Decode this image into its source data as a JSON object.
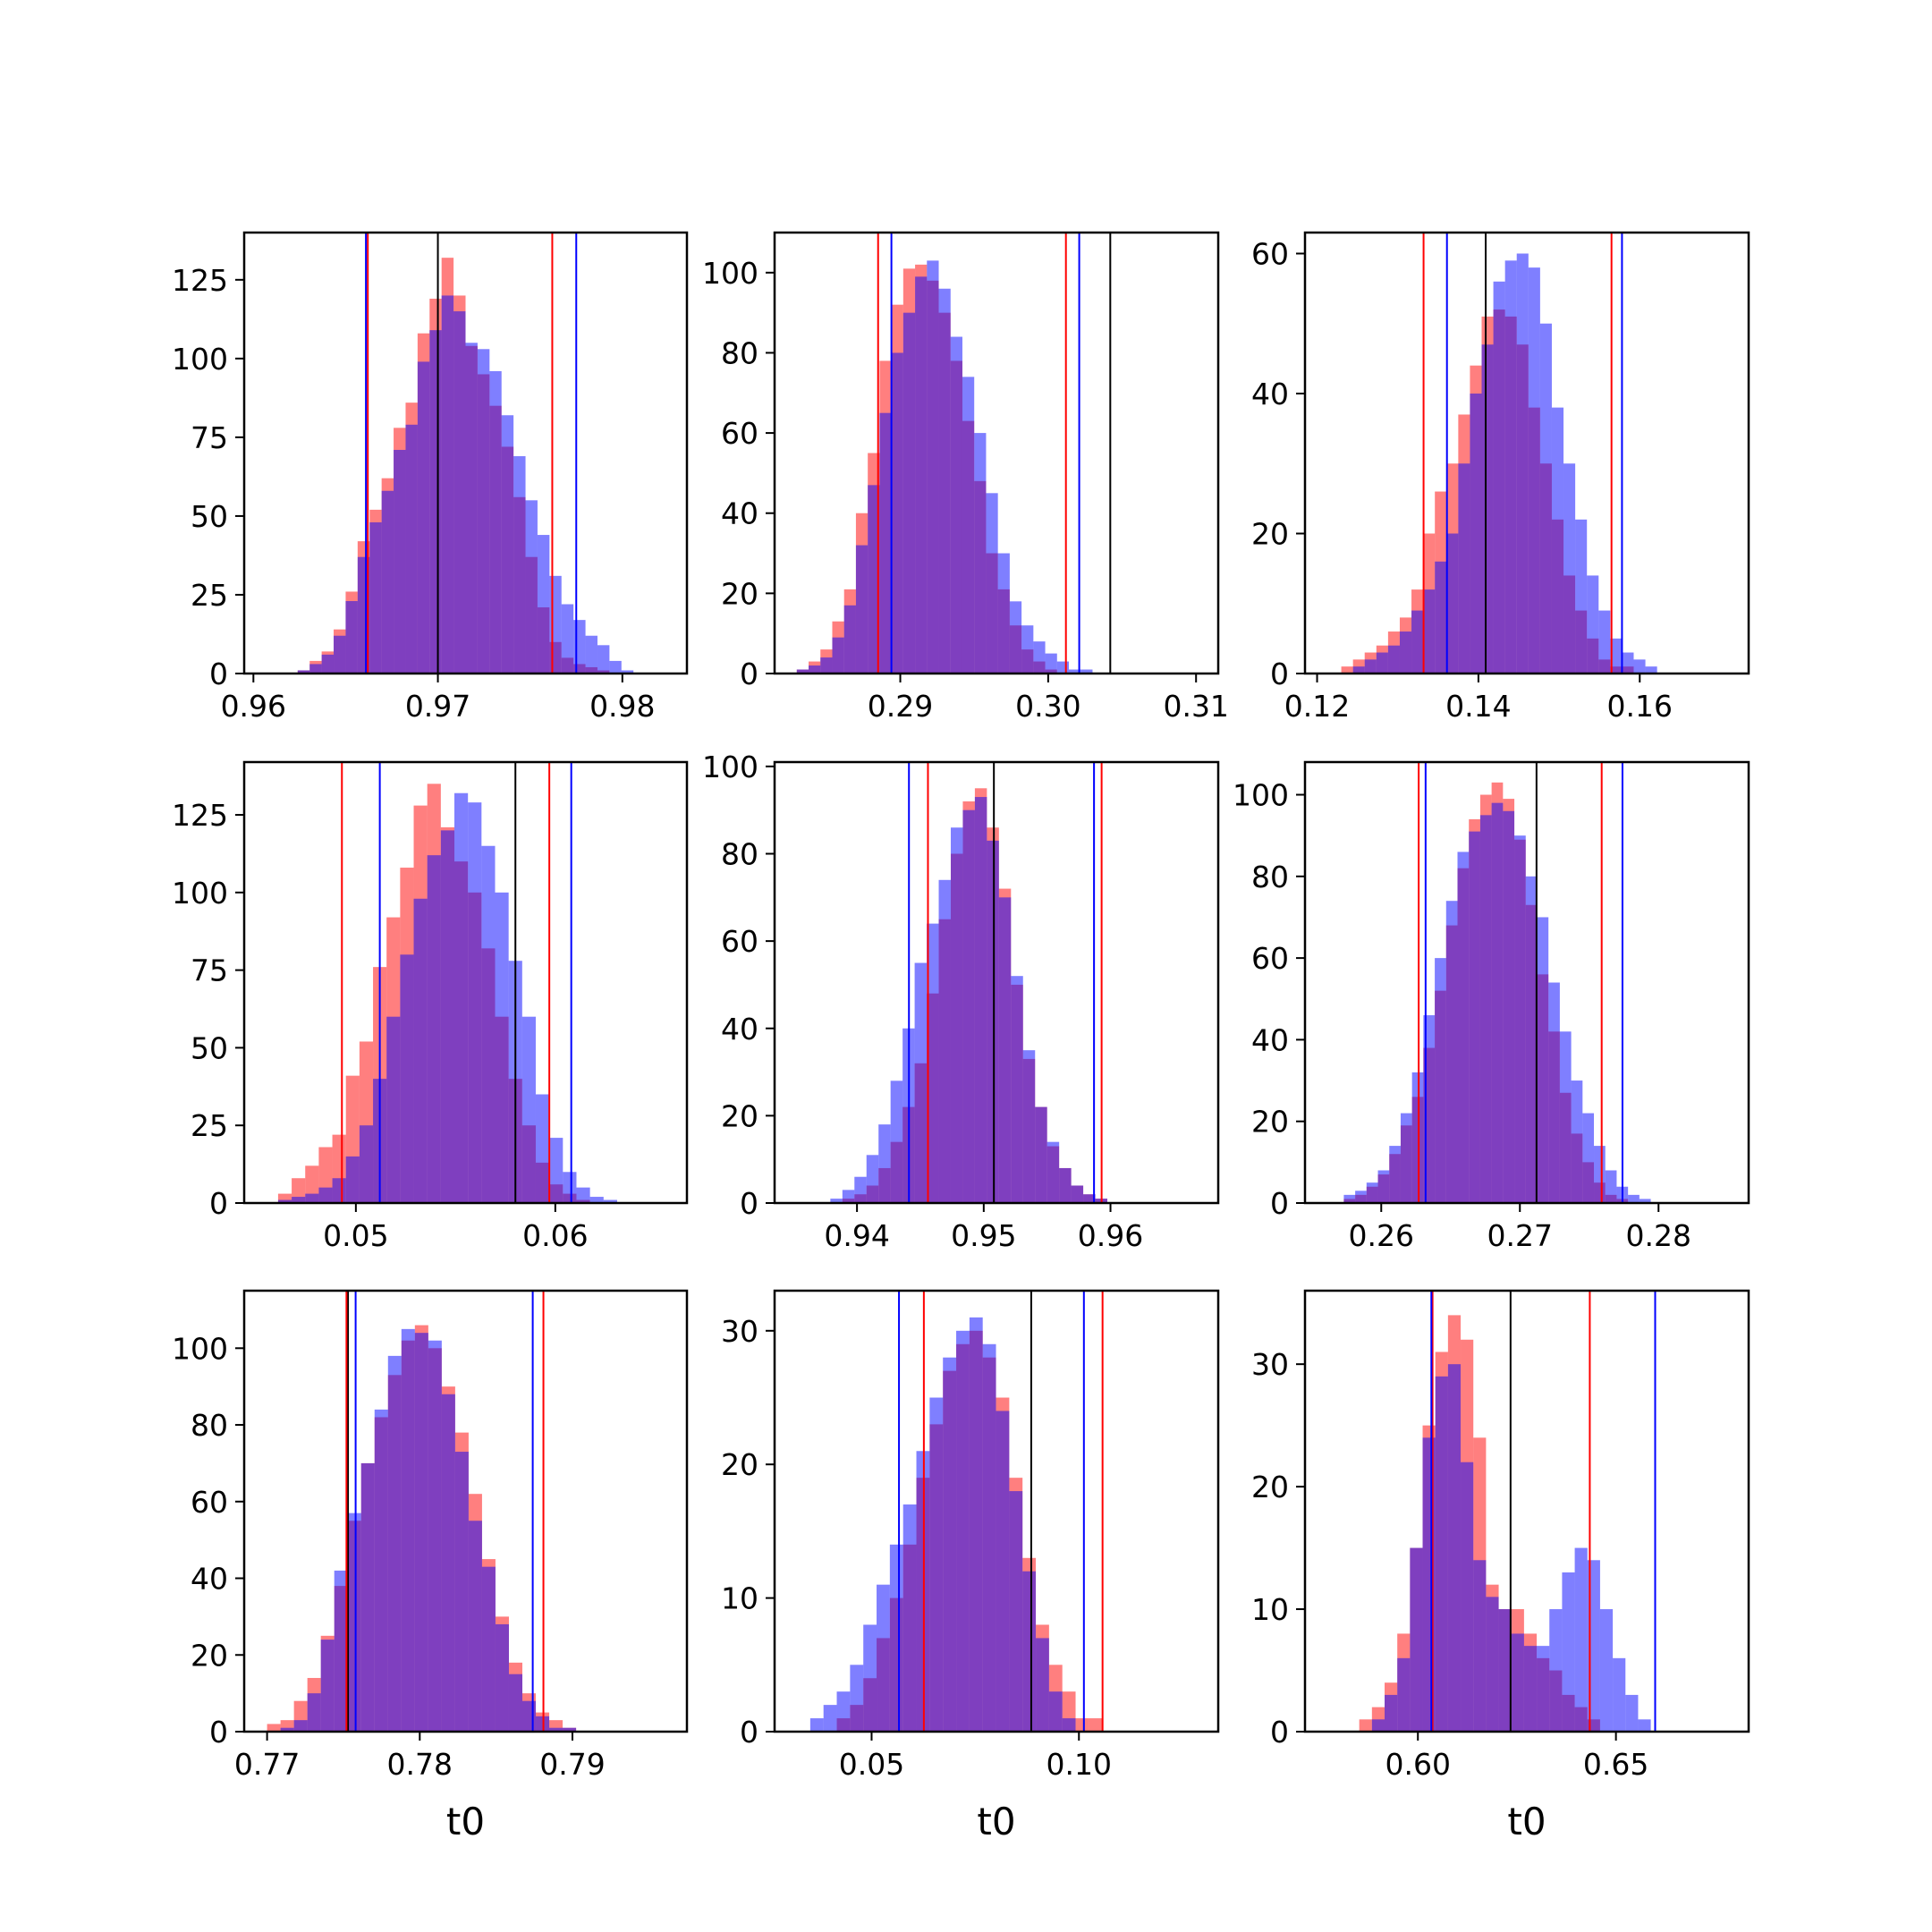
{
  "colors": {
    "red": "#ff0000",
    "blue": "#0000ff",
    "vline_black": "#000000"
  },
  "chart_data": [
    {
      "type": "bar",
      "panel": 1,
      "xlim": [
        0.9595,
        0.9835
      ],
      "ylim": [
        0,
        140
      ],
      "x_ticks": [
        0.96,
        0.97,
        0.98
      ],
      "x_tick_labels": [
        "0.96",
        "0.97",
        "0.98"
      ],
      "y_ticks": [
        0,
        25,
        50,
        75,
        100,
        125
      ],
      "y_tick_labels": [
        "0",
        "25",
        "50",
        "75",
        "100",
        "125"
      ],
      "xlabel": "",
      "vlines": {
        "red": [
          0.9662,
          0.9762
        ],
        "blue": [
          0.9661,
          0.9775
        ],
        "black": [
          0.97
        ]
      },
      "series": [
        {
          "color": "red",
          "bin_start": 0.9624,
          "bin_width": 0.00065,
          "values": [
            1,
            4,
            7,
            14,
            26,
            42,
            52,
            62,
            78,
            86,
            108,
            119,
            132,
            120,
            104,
            95,
            85,
            72,
            56,
            37,
            21,
            10,
            5,
            3,
            2,
            1,
            0,
            0
          ]
        },
        {
          "color": "blue",
          "bin_start": 0.9624,
          "bin_width": 0.00065,
          "values": [
            1,
            3,
            6,
            12,
            23,
            37,
            48,
            58,
            71,
            79,
            99,
            109,
            120,
            115,
            105,
            103,
            96,
            82,
            69,
            55,
            44,
            31,
            22,
            17,
            12,
            9,
            4,
            1
          ]
        }
      ]
    },
    {
      "type": "bar",
      "panel": 2,
      "xlim": [
        0.2815,
        0.3115
      ],
      "ylim": [
        0,
        110
      ],
      "x_ticks": [
        0.29,
        0.3,
        0.31
      ],
      "x_tick_labels": [
        "0.29",
        "0.30",
        "0.31"
      ],
      "y_ticks": [
        0,
        20,
        40,
        60,
        80,
        100
      ],
      "y_tick_labels": [
        "0",
        "20",
        "40",
        "60",
        "80",
        "100"
      ],
      "xlabel": "",
      "vlines": {
        "red": [
          0.2885,
          0.3012
        ],
        "blue": [
          0.2894,
          0.3021
        ],
        "black": [
          0.3042
        ]
      },
      "series": [
        {
          "color": "red",
          "bin_start": 0.283,
          "bin_width": 0.0008,
          "values": [
            1,
            3,
            6,
            13,
            21,
            40,
            55,
            78,
            92,
            101,
            102,
            98,
            90,
            78,
            63,
            48,
            30,
            21,
            12,
            6,
            3,
            1,
            0,
            0,
            0
          ]
        },
        {
          "color": "blue",
          "bin_start": 0.283,
          "bin_width": 0.0008,
          "values": [
            1,
            2,
            4,
            9,
            17,
            32,
            47,
            65,
            80,
            90,
            99,
            103,
            96,
            84,
            74,
            60,
            45,
            30,
            18,
            12,
            8,
            5,
            3,
            1,
            1
          ]
        }
      ]
    },
    {
      "type": "bar",
      "panel": 3,
      "xlim": [
        0.1185,
        0.1735
      ],
      "ylim": [
        0,
        63
      ],
      "x_ticks": [
        0.12,
        0.14,
        0.16
      ],
      "x_tick_labels": [
        "0.12",
        "0.14",
        "0.16"
      ],
      "y_ticks": [
        0,
        20,
        40,
        60
      ],
      "y_tick_labels": [
        "0",
        "20",
        "40",
        "60"
      ],
      "xlabel": "",
      "vlines": {
        "red": [
          0.1332,
          0.1565
        ],
        "blue": [
          0.1361,
          0.1578
        ],
        "black": [
          0.1409
        ]
      },
      "series": [
        {
          "color": "red",
          "bin_start": 0.123,
          "bin_width": 0.00145,
          "values": [
            1,
            2,
            3,
            4,
            6,
            8,
            12,
            20,
            26,
            30,
            37,
            44,
            51,
            52,
            51,
            47,
            38,
            30,
            22,
            14,
            9,
            5,
            2,
            1,
            1,
            0,
            0,
            0
          ]
        },
        {
          "color": "blue",
          "bin_start": 0.123,
          "bin_width": 0.00145,
          "values": [
            0,
            1,
            2,
            3,
            4,
            6,
            9,
            12,
            16,
            20,
            30,
            40,
            47,
            56,
            59,
            60,
            58,
            50,
            38,
            30,
            22,
            14,
            9,
            5,
            3,
            2,
            1,
            0
          ]
        }
      ]
    },
    {
      "type": "bar",
      "panel": 4,
      "xlim": [
        0.0444,
        0.0666
      ],
      "ylim": [
        0,
        142
      ],
      "x_ticks": [
        0.05,
        0.06
      ],
      "x_tick_labels": [
        "0.05",
        "0.06"
      ],
      "y_ticks": [
        0,
        25,
        50,
        75,
        100,
        125
      ],
      "y_tick_labels": [
        "0",
        "25",
        "50",
        "75",
        "100",
        "125"
      ],
      "xlabel": "",
      "vlines": {
        "red": [
          0.0493,
          0.0597
        ],
        "blue": [
          0.0512,
          0.0608
        ],
        "black": [
          0.058
        ]
      },
      "series": [
        {
          "color": "red",
          "bin_start": 0.0461,
          "bin_width": 0.00068,
          "values": [
            3,
            8,
            12,
            18,
            22,
            41,
            52,
            76,
            92,
            108,
            128,
            135,
            121,
            110,
            100,
            82,
            60,
            40,
            25,
            13,
            6,
            3,
            1,
            0,
            0
          ]
        },
        {
          "color": "blue",
          "bin_start": 0.0461,
          "bin_width": 0.00068,
          "values": [
            1,
            2,
            3,
            5,
            8,
            15,
            25,
            40,
            60,
            80,
            98,
            112,
            120,
            132,
            129,
            115,
            100,
            78,
            60,
            35,
            21,
            10,
            5,
            2,
            1
          ]
        }
      ]
    },
    {
      "type": "bar",
      "panel": 5,
      "xlim": [
        0.9335,
        0.9685
      ],
      "ylim": [
        0,
        101
      ],
      "x_ticks": [
        0.94,
        0.95,
        0.96
      ],
      "x_tick_labels": [
        "0.94",
        "0.95",
        "0.96"
      ],
      "y_ticks": [
        0,
        20,
        40,
        60,
        80,
        100
      ],
      "y_tick_labels": [
        "0",
        "20",
        "40",
        "60",
        "80",
        "100"
      ],
      "xlabel": "",
      "vlines": {
        "red": [
          0.9456,
          0.9593
        ],
        "blue": [
          0.9441,
          0.9587
        ],
        "black": [
          0.9508
        ]
      },
      "series": [
        {
          "color": "red",
          "bin_start": 0.936,
          "bin_width": 0.00095,
          "values": [
            0,
            0,
            0,
            1,
            2,
            4,
            8,
            14,
            22,
            32,
            48,
            65,
            80,
            92,
            95,
            86,
            72,
            50,
            33,
            22,
            13,
            8,
            4,
            2,
            1,
            0,
            0,
            0,
            0,
            0
          ]
        },
        {
          "color": "blue",
          "bin_start": 0.936,
          "bin_width": 0.00095,
          "values": [
            0,
            0,
            1,
            3,
            6,
            11,
            18,
            28,
            40,
            55,
            64,
            74,
            86,
            90,
            93,
            83,
            70,
            52,
            35,
            22,
            14,
            8,
            4,
            2,
            1,
            0,
            0,
            0,
            0,
            0
          ]
        }
      ]
    },
    {
      "type": "bar",
      "panel": 6,
      "xlim": [
        0.2545,
        0.2865
      ],
      "ylim": [
        0,
        108
      ],
      "x_ticks": [
        0.26,
        0.27,
        0.28
      ],
      "x_tick_labels": [
        "0.26",
        "0.27",
        "0.28"
      ],
      "y_ticks": [
        0,
        20,
        40,
        60,
        80,
        100
      ],
      "y_tick_labels": [
        "0",
        "20",
        "40",
        "60",
        "80",
        "100"
      ],
      "xlabel": "",
      "vlines": {
        "red": [
          0.2627,
          0.2759
        ],
        "blue": [
          0.2632,
          0.2774
        ],
        "black": [
          0.2712
        ]
      },
      "series": [
        {
          "color": "red",
          "bin_start": 0.2573,
          "bin_width": 0.00082,
          "values": [
            1,
            2,
            4,
            7,
            12,
            19,
            26,
            38,
            52,
            68,
            82,
            94,
            100,
            103,
            99,
            89,
            73,
            56,
            42,
            27,
            17,
            10,
            5,
            2,
            1,
            0,
            0,
            0
          ]
        },
        {
          "color": "blue",
          "bin_start": 0.2573,
          "bin_width": 0.00082,
          "values": [
            2,
            3,
            5,
            8,
            14,
            22,
            32,
            46,
            60,
            74,
            86,
            91,
            95,
            98,
            96,
            90,
            80,
            70,
            54,
            42,
            30,
            22,
            14,
            8,
            4,
            2,
            1,
            0
          ]
        }
      ]
    },
    {
      "type": "bar",
      "panel": 7,
      "xlim": [
        0.7685,
        0.7975
      ],
      "ylim": [
        0,
        115
      ],
      "x_ticks": [
        0.77,
        0.78,
        0.79
      ],
      "x_tick_labels": [
        "0.77",
        "0.78",
        "0.79"
      ],
      "y_ticks": [
        0,
        20,
        40,
        60,
        80,
        100
      ],
      "y_tick_labels": [
        "0",
        "20",
        "40",
        "60",
        "80",
        "100"
      ],
      "xlabel": "t0",
      "vlines": {
        "red": [
          0.7752,
          0.7881
        ],
        "blue": [
          0.7758,
          0.7874
        ],
        "black": [
          0.7753
        ]
      },
      "series": [
        {
          "color": "red",
          "bin_start": 0.77,
          "bin_width": 0.00088,
          "values": [
            2,
            3,
            8,
            14,
            25,
            38,
            55,
            70,
            82,
            93,
            102,
            106,
            100,
            90,
            78,
            62,
            45,
            30,
            18,
            10,
            5,
            3,
            1,
            0,
            0,
            0,
            0
          ]
        },
        {
          "color": "blue",
          "bin_start": 0.77,
          "bin_width": 0.00088,
          "values": [
            0,
            1,
            3,
            10,
            24,
            42,
            57,
            70,
            84,
            98,
            105,
            104,
            102,
            88,
            73,
            55,
            43,
            28,
            15,
            8,
            4,
            1,
            1,
            0,
            0,
            0,
            0
          ]
        }
      ]
    },
    {
      "type": "bar",
      "panel": 8,
      "xlim": [
        0.0266,
        0.1336
      ],
      "ylim": [
        0,
        33
      ],
      "x_ticks": [
        0.05,
        0.1
      ],
      "x_tick_labels": [
        "0.05",
        "0.10"
      ],
      "y_ticks": [
        0,
        10,
        20,
        30
      ],
      "y_tick_labels": [
        "0",
        "10",
        "20",
        "30"
      ],
      "xlabel": "t0",
      "vlines": {
        "red": [
          0.0626,
          0.1057
        ],
        "blue": [
          0.0566,
          0.1012
        ],
        "black": [
          0.0885
        ]
      },
      "series": [
        {
          "color": "red",
          "bin_start": 0.032,
          "bin_width": 0.0032,
          "values": [
            0,
            0,
            0,
            1,
            2,
            4,
            7,
            10,
            14,
            19,
            23,
            27,
            29,
            30,
            28,
            25,
            19,
            13,
            8,
            5,
            3,
            1,
            1,
            0,
            0,
            0,
            0,
            0,
            0,
            0
          ]
        },
        {
          "color": "blue",
          "bin_start": 0.032,
          "bin_width": 0.0032,
          "values": [
            0,
            1,
            2,
            3,
            5,
            8,
            11,
            14,
            17,
            21,
            25,
            28,
            30,
            31,
            29,
            24,
            18,
            12,
            7,
            3,
            1,
            0,
            0,
            0,
            0,
            0,
            0,
            0,
            0,
            0
          ]
        }
      ]
    },
    {
      "type": "bar",
      "panel": 9,
      "xlim": [
        0.5715,
        0.6835
      ],
      "ylim": [
        0,
        36
      ],
      "x_ticks": [
        0.6,
        0.65
      ],
      "x_tick_labels": [
        "0.60",
        "0.65"
      ],
      "y_ticks": [
        0,
        10,
        20,
        30
      ],
      "y_tick_labels": [
        "0",
        "10",
        "20",
        "30"
      ],
      "xlabel": "t0",
      "vlines": {
        "red": [
          0.6037,
          0.6434
        ],
        "blue": [
          0.6034,
          0.6599
        ],
        "black": [
          0.6234
        ]
      },
      "series": [
        {
          "color": "red",
          "bin_start": 0.582,
          "bin_width": 0.0032,
          "values": [
            0,
            1,
            2,
            4,
            8,
            15,
            25,
            31,
            34,
            32,
            24,
            12,
            10,
            10,
            8,
            6,
            5,
            3,
            2,
            1,
            0,
            0,
            0,
            0,
            0,
            0,
            0,
            0,
            0
          ]
        },
        {
          "color": "blue",
          "bin_start": 0.582,
          "bin_width": 0.0032,
          "values": [
            0,
            0,
            1,
            3,
            6,
            15,
            24,
            29,
            30,
            22,
            14,
            11,
            10,
            8,
            7,
            7,
            10,
            13,
            15,
            14,
            10,
            6,
            3,
            1,
            0,
            0,
            0,
            0,
            0
          ]
        }
      ]
    }
  ]
}
